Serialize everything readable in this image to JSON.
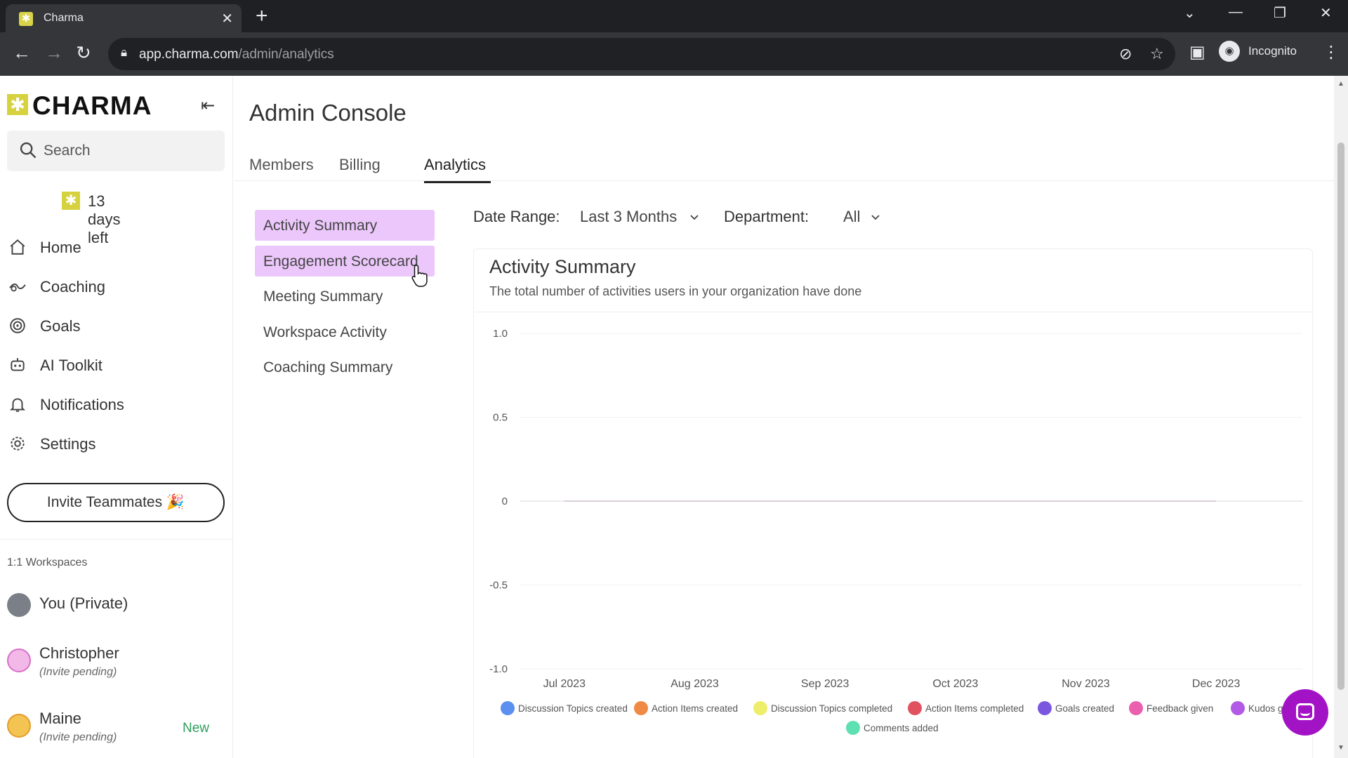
{
  "browser": {
    "tab_title": "Charma",
    "url_host": "app.charma.com",
    "url_path": "/admin/analytics",
    "profile_label": "Incognito"
  },
  "sidebar": {
    "logo_text": "CHARMA",
    "search_placeholder": "Search",
    "trial_text": "13 days left",
    "nav": [
      {
        "label": "Home",
        "icon": "home-icon"
      },
      {
        "label": "Coaching",
        "icon": "coaching-icon"
      },
      {
        "label": "Goals",
        "icon": "target-icon"
      },
      {
        "label": "AI Toolkit",
        "icon": "robot-icon"
      },
      {
        "label": "Notifications",
        "icon": "bell-icon"
      },
      {
        "label": "Settings",
        "icon": "gear-icon"
      }
    ],
    "invite_label": "Invite Teammates 🎉",
    "workspaces_heading": "1:1 Workspaces",
    "workspaces": [
      {
        "name": "You (Private)",
        "sub": "",
        "badge": ""
      },
      {
        "name": "Christopher",
        "sub": "(Invite pending)",
        "badge": ""
      },
      {
        "name": "Maine",
        "sub": "(Invite pending)",
        "badge": "New"
      }
    ]
  },
  "main": {
    "title": "Admin Console",
    "tabs": [
      {
        "label": "Members",
        "active": false
      },
      {
        "label": "Billing",
        "active": false
      },
      {
        "label": "Analytics",
        "active": true
      }
    ],
    "subnav": [
      {
        "label": "Activity Summary",
        "highlighted": true
      },
      {
        "label": "Engagement Scorecard",
        "highlighted": true
      },
      {
        "label": "Meeting Summary",
        "highlighted": false
      },
      {
        "label": "Workspace Activity",
        "highlighted": false
      },
      {
        "label": "Coaching Summary",
        "highlighted": false
      }
    ],
    "filters": {
      "date_range_label": "Date Range:",
      "date_range_value": "Last 3 Months",
      "department_label": "Department:",
      "department_value": "All"
    },
    "card": {
      "title": "Activity Summary",
      "subtitle": "The total number of activities users in your organization have done"
    }
  },
  "colors": {
    "highlight": "#ecc7fb",
    "brand_yellow": "#d6d23f",
    "chat_purple": "#a313c6",
    "new_badge": "#2e9e5b"
  },
  "chart_data": {
    "type": "line",
    "title": "",
    "x": [
      "Jul 2023",
      "Aug 2023",
      "Sep 2023",
      "Oct 2023",
      "Nov 2023",
      "Dec 2023"
    ],
    "yticks": [
      "1.0",
      "0.5",
      "0",
      "-0.5",
      "-1.0"
    ],
    "ylim": [
      -1.0,
      1.0
    ],
    "grid": true,
    "legend_position": "bottom",
    "series": [
      {
        "name": "Discussion Topics created",
        "color": "#5b8ff0",
        "values": [
          0,
          0,
          0,
          0,
          0,
          0
        ]
      },
      {
        "name": "Action Items created",
        "color": "#ef8a46",
        "values": [
          0,
          0,
          0,
          0,
          0,
          0
        ]
      },
      {
        "name": "Discussion Topics completed",
        "color": "#eeee6a",
        "values": [
          0,
          0,
          0,
          0,
          0,
          0
        ]
      },
      {
        "name": "Action Items completed",
        "color": "#e05260",
        "values": [
          0,
          0,
          0,
          0,
          0,
          0
        ]
      },
      {
        "name": "Goals created",
        "color": "#7b57e0",
        "values": [
          0,
          0,
          0,
          0,
          0,
          0
        ]
      },
      {
        "name": "Feedback given",
        "color": "#ea5fae",
        "values": [
          0,
          0,
          0,
          0,
          0,
          0
        ]
      },
      {
        "name": "Kudos give",
        "color": "#b259e6",
        "values": [
          0,
          0,
          0,
          0,
          0,
          0
        ]
      },
      {
        "name": "Comments added",
        "color": "#5fe0b2",
        "values": [
          0,
          0,
          0,
          0,
          0,
          0
        ]
      }
    ]
  }
}
